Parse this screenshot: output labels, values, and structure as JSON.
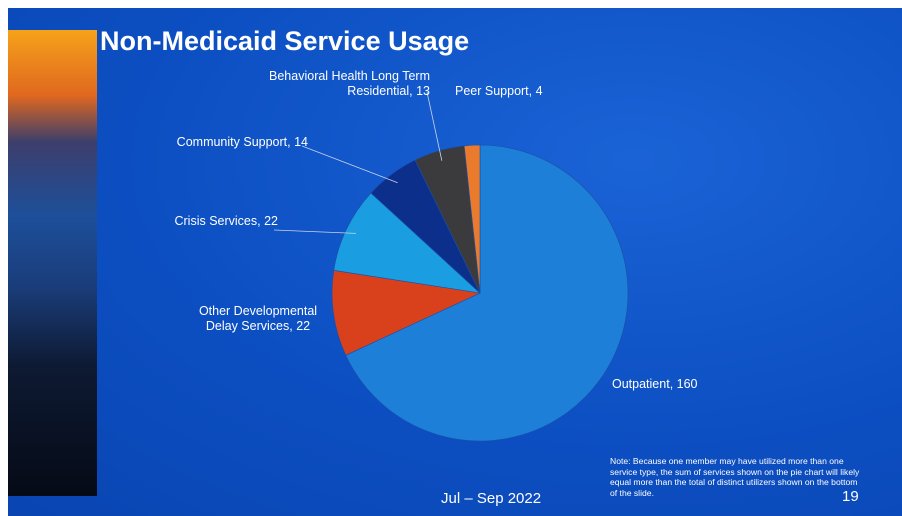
{
  "chart_data": {
    "type": "pie",
    "title": "Non-Medicaid Service Usage",
    "categories": [
      "Outpatient",
      "Other Developmental Delay Services",
      "Crisis Services",
      "Community Support",
      "Behavioral Health Long Term Residential",
      "Peer Support"
    ],
    "values": [
      160,
      22,
      22,
      14,
      13,
      4
    ],
    "colors": [
      "#1d7fd8",
      "#d8411c",
      "#1b9de2",
      "#0d2f8c",
      "#3b3b3d",
      "#ea7b2c"
    ]
  },
  "footer": "Jul – Sep 2022",
  "note": "Note: Because one member may have utilized more than one service type, the sum of services shown on the pie chart will likely equal more than the total of distinct utilizers shown on the bottom of the slide.",
  "page_number": "19"
}
